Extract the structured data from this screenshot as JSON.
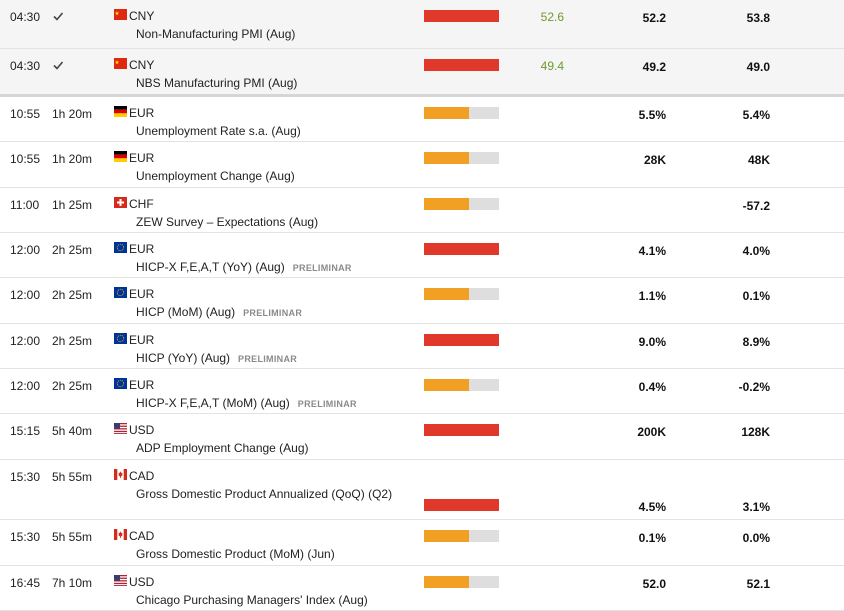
{
  "colors": {
    "high": "#e0392b",
    "medium": "#f2a023",
    "empty": "#dedede",
    "actual_positive": "#6d9a2c"
  },
  "rows": [
    {
      "time": "04:30",
      "status": "check-icon",
      "countrycode": "cn",
      "currency": "CNY",
      "name": "Non-Manufacturing PMI (Aug)",
      "tag": "",
      "impact": "high",
      "impact_fill": 1.0,
      "actual": "52.6",
      "forecast": "52.2",
      "previous": "53.8"
    },
    {
      "time": "04:30",
      "status": "check-icon",
      "countrycode": "cn",
      "currency": "CNY",
      "name": "NBS Manufacturing PMI (Aug)",
      "tag": "",
      "impact": "high",
      "impact_fill": 1.0,
      "actual": "49.4",
      "forecast": "49.2",
      "previous": "49.0"
    },
    {
      "time": "10:55",
      "status": "1h 20m",
      "countrycode": "de",
      "currency": "EUR",
      "name": "Unemployment Rate s.a. (Aug)",
      "tag": "",
      "impact": "medium",
      "impact_fill": 0.6,
      "actual": "",
      "forecast": "5.5%",
      "previous": "5.4%"
    },
    {
      "time": "10:55",
      "status": "1h 20m",
      "countrycode": "de",
      "currency": "EUR",
      "name": "Unemployment Change (Aug)",
      "tag": "",
      "impact": "medium",
      "impact_fill": 0.6,
      "actual": "",
      "forecast": "28K",
      "previous": "48K"
    },
    {
      "time": "11:00",
      "status": "1h 25m",
      "countrycode": "ch",
      "currency": "CHF",
      "name": "ZEW Survey – Expectations (Aug)",
      "tag": "",
      "impact": "medium",
      "impact_fill": 0.6,
      "actual": "",
      "forecast": "",
      "previous": "-57.2"
    },
    {
      "time": "12:00",
      "status": "2h 25m",
      "countrycode": "eu",
      "currency": "EUR",
      "name": "HICP-X F,E,A,T (YoY) (Aug)",
      "tag": "PRELIMINAR",
      "impact": "high",
      "impact_fill": 1.0,
      "actual": "",
      "forecast": "4.1%",
      "previous": "4.0%"
    },
    {
      "time": "12:00",
      "status": "2h 25m",
      "countrycode": "eu",
      "currency": "EUR",
      "name": "HICP (MoM) (Aug)",
      "tag": "PRELIMINAR",
      "impact": "medium",
      "impact_fill": 0.6,
      "actual": "",
      "forecast": "1.1%",
      "previous": "0.1%"
    },
    {
      "time": "12:00",
      "status": "2h 25m",
      "countrycode": "eu",
      "currency": "EUR",
      "name": "HICP (YoY) (Aug)",
      "tag": "PRELIMINAR",
      "impact": "high",
      "impact_fill": 1.0,
      "actual": "",
      "forecast": "9.0%",
      "previous": "8.9%"
    },
    {
      "time": "12:00",
      "status": "2h 25m",
      "countrycode": "eu",
      "currency": "EUR",
      "name": "HICP-X F,E,A,T (MoM) (Aug)",
      "tag": "PRELIMINAR",
      "impact": "medium",
      "impact_fill": 0.6,
      "actual": "",
      "forecast": "0.4%",
      "previous": "-0.2%"
    },
    {
      "time": "15:15",
      "status": "5h 40m",
      "countrycode": "us",
      "currency": "USD",
      "name": "ADP Employment Change (Aug)",
      "tag": "",
      "impact": "high",
      "impact_fill": 1.0,
      "actual": "",
      "forecast": "200K",
      "previous": "128K"
    },
    {
      "time": "15:30",
      "status": "5h 55m",
      "countrycode": "ca",
      "currency": "CAD",
      "name": "Gross Domestic Product Annualized (QoQ) (Q2)",
      "tag": "",
      "impact": "high",
      "impact_fill": 1.0,
      "actual": "",
      "forecast": "4.5%",
      "previous": "3.1%"
    },
    {
      "time": "15:30",
      "status": "5h 55m",
      "countrycode": "ca",
      "currency": "CAD",
      "name": "Gross Domestic Product (MoM) (Jun)",
      "tag": "",
      "impact": "medium",
      "impact_fill": 0.6,
      "actual": "",
      "forecast": "0.1%",
      "previous": "0.0%"
    },
    {
      "time": "16:45",
      "status": "7h 10m",
      "countrycode": "us",
      "currency": "USD",
      "name": "Chicago Purchasing Managers' Index (Aug)",
      "tag": "",
      "impact": "medium",
      "impact_fill": 0.6,
      "actual": "",
      "forecast": "52.0",
      "previous": "52.1"
    }
  ]
}
